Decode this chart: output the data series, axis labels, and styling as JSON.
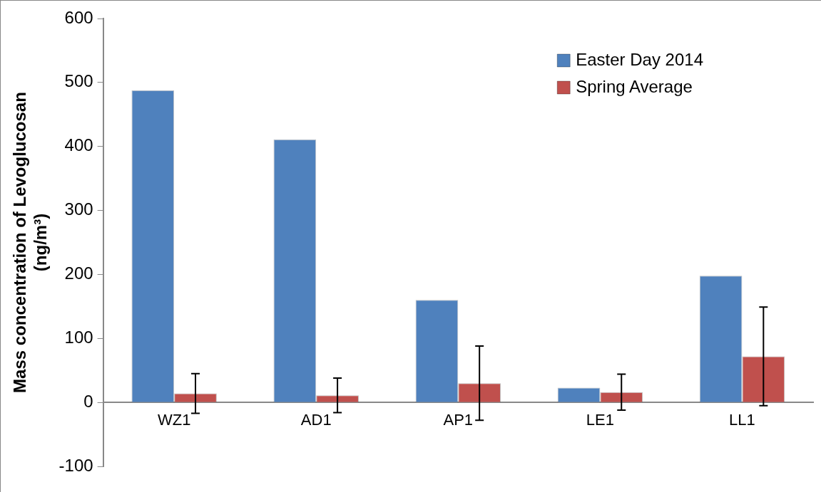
{
  "chart_data": {
    "type": "bar",
    "ylabel": "Mass concentration of Levoglucosan (ng/m³)",
    "categories": [
      "WZ1",
      "AD1",
      "AP1",
      "LE1",
      "LL1"
    ],
    "series": [
      {
        "name": "Easter Day 2014",
        "color": "#4f81bd",
        "values": [
          488,
          411,
          160,
          23,
          198
        ]
      },
      {
        "name": "Spring Average",
        "color": "#c0504d",
        "values": [
          14,
          11,
          30,
          16,
          72
        ],
        "errors": [
          31,
          27,
          58,
          28,
          77
        ]
      }
    ],
    "ylim": [
      -100,
      600
    ],
    "yticks": [
      -100,
      0,
      100,
      200,
      300,
      400,
      500,
      600
    ],
    "grid": false,
    "legend": "top right"
  }
}
